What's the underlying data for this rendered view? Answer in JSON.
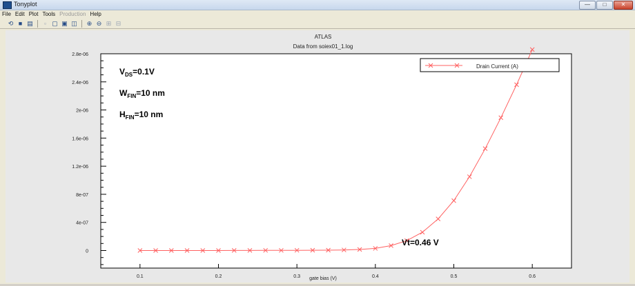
{
  "window": {
    "title": "Tonyplot",
    "controls": [
      "—",
      "□",
      "✕"
    ]
  },
  "menu": [
    {
      "label": "File",
      "enabled": true
    },
    {
      "label": "Edit",
      "enabled": true
    },
    {
      "label": "Plot",
      "enabled": true
    },
    {
      "label": "Tools",
      "enabled": true
    },
    {
      "label": "Production",
      "enabled": false
    },
    {
      "label": "Help",
      "enabled": true
    }
  ],
  "toolbar_icons": [
    "open-icon",
    "save-icon",
    "print-icon",
    "new-plot-icon",
    "copy-icon",
    "paste-icon",
    "layout-icon",
    "zoom-in-icon",
    "zoom-out-icon",
    "grid-icon",
    "table-icon"
  ],
  "annotations": {
    "vds": {
      "main": "V",
      "sub": "DS",
      "rest": "=0.1V"
    },
    "wfin": {
      "main": "W",
      "sub": "FIN",
      "rest": "=10 nm"
    },
    "hfin": {
      "main": "H",
      "sub": "FIN",
      "rest": "=10 nm"
    },
    "vt": "Vt=0.46 V"
  },
  "chart_data": {
    "type": "line",
    "title": "ATLAS",
    "subtitle": "Data from soiex01_1.log",
    "xlabel": "gate bias (V)",
    "ylabel": "",
    "xlim": [
      0.05,
      0.65
    ],
    "ylim": [
      -2.5e-07,
      2.8e-06
    ],
    "x_ticks": [
      0.1,
      0.2,
      0.3,
      0.4,
      0.5,
      0.6
    ],
    "x_tick_labels": [
      "0.1",
      "0.2",
      "0.3",
      "0.4",
      "0.5",
      "0.6"
    ],
    "y_ticks": [
      0,
      4e-07,
      8e-07,
      1.2e-06,
      1.6e-06,
      2e-06,
      2.4e-06,
      2.8e-06
    ],
    "y_tick_labels": [
      "0",
      "4e-07",
      "8e-07",
      "1.2e-06",
      "1.6e-06",
      "2e-06",
      "2.4e-06",
      "2.8e-06"
    ],
    "legend": "top-right",
    "series": [
      {
        "name": "Drain Current (A)",
        "color": "#ff6060",
        "x": [
          0.1,
          0.12,
          0.14,
          0.16,
          0.18,
          0.2,
          0.22,
          0.24,
          0.26,
          0.28,
          0.3,
          0.32,
          0.34,
          0.36,
          0.38,
          0.4,
          0.42,
          0.44,
          0.46,
          0.48,
          0.5,
          0.52,
          0.54,
          0.56,
          0.58,
          0.6
        ],
        "y": [
          0,
          0,
          0,
          0,
          0,
          0,
          1e-09,
          1e-09,
          2e-09,
          2e-09,
          3e-09,
          4e-09,
          5e-09,
          8e-09,
          1.5e-08,
          3e-08,
          7e-08,
          1.4e-07,
          2.6e-07,
          4.5e-07,
          7.1e-07,
          1.05e-06,
          1.45e-06,
          1.89e-06,
          2.36e-06,
          2.86e-06
        ]
      }
    ]
  }
}
